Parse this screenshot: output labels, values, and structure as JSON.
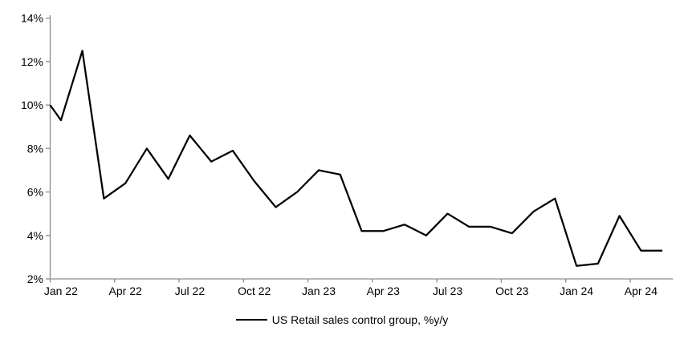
{
  "chart_data": {
    "type": "line",
    "title": "",
    "background": "#ffffff",
    "grid": false,
    "axis_color": "#8c8c8c",
    "text_color": "#000000",
    "legend_position": "bottom-center",
    "legend": [
      {
        "label": "US Retail sales control group, %y/y",
        "color": "#000000"
      }
    ],
    "ylim": [
      2,
      14
    ],
    "y_ticks": [
      {
        "value": 14,
        "label": "14%"
      },
      {
        "value": 12,
        "label": "12%"
      },
      {
        "value": 10,
        "label": "10%"
      },
      {
        "value": 8,
        "label": "8%"
      },
      {
        "value": 6,
        "label": "6%"
      },
      {
        "value": 4,
        "label": "4%"
      },
      {
        "value": 2,
        "label": "2%"
      }
    ],
    "x_tick_labels": [
      "Jan 22",
      "Apr 22",
      "Jul 22",
      "Oct 22",
      "Jan 23",
      "Apr 23",
      "Jul 23",
      "Oct 23",
      "Jan 24",
      "Apr 24"
    ],
    "x_categories": [
      "Jan 22",
      "Feb 22",
      "Mar 22",
      "Apr 22",
      "May 22",
      "Jun 22",
      "Jul 22",
      "Aug 22",
      "Sep 22",
      "Oct 22",
      "Nov 22",
      "Dec 22",
      "Jan 23",
      "Feb 23",
      "Mar 23",
      "Apr 23",
      "May 23",
      "Jun 23",
      "Jul 23",
      "Aug 23",
      "Sep 23",
      "Oct 23",
      "Nov 23",
      "Dec 23",
      "Jan 24",
      "Feb 24",
      "Mar 24",
      "Apr 24",
      "May 24"
    ],
    "left_edge_entry_value": 10.0,
    "series": [
      {
        "name": "US Retail sales control group, %y/y",
        "color": "#000000",
        "values": [
          9.3,
          12.5,
          5.7,
          6.4,
          8.0,
          6.6,
          8.6,
          7.4,
          7.9,
          6.5,
          5.3,
          6.0,
          7.0,
          6.8,
          4.2,
          4.2,
          4.5,
          4.0,
          5.0,
          4.4,
          4.4,
          4.1,
          5.1,
          5.7,
          2.6,
          2.7,
          4.9,
          3.3,
          3.3
        ]
      }
    ]
  }
}
